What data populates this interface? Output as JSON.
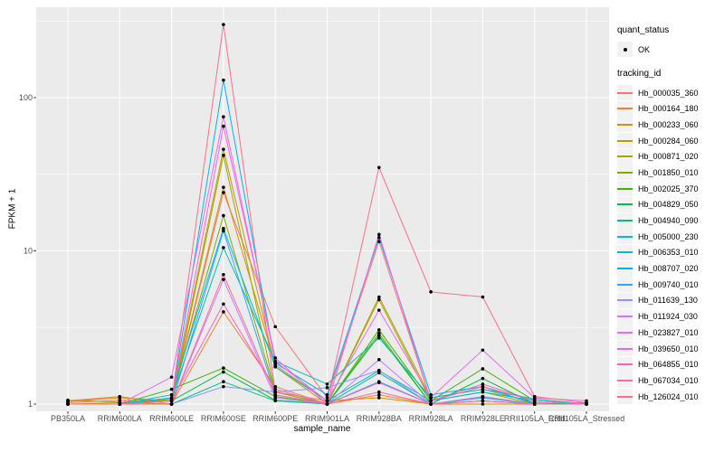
{
  "chart_data": {
    "type": "line",
    "title": "",
    "xlabel": "sample_name",
    "ylabel": "FPKM + 1",
    "y_scale": "log10",
    "y_ticks": [
      1,
      10,
      100
    ],
    "y_minor_ticks": [
      3.162,
      31.62,
      316.2
    ],
    "ylim": [
      0.9,
      390
    ],
    "grid": "on",
    "legend_position": "right",
    "point_marker": "black-dot",
    "categories": [
      "PB350LA",
      "RRIM600LA",
      "RRIM600LE",
      "RRIM600SE",
      "RRIM600PE",
      "RRIM901LA",
      "RRIM928BA",
      "RRIM928LA",
      "RRIM928LE",
      "RRII105LA_Cold",
      "RRII105LA_Stressed"
    ],
    "series": [
      {
        "name": "Hb_000035_360",
        "color": "#F8766D",
        "values": [
          1.02,
          1.06,
          1.05,
          24,
          3.2,
          1.1,
          11.5,
          1.05,
          1.35,
          1.05,
          1.0
        ]
      },
      {
        "name": "Hb_000164_180",
        "color": "#EA8331",
        "values": [
          1.05,
          1.12,
          1.0,
          4.0,
          1.3,
          1.0,
          1.15,
          1.0,
          1.05,
          1.0,
          1.0
        ]
      },
      {
        "name": "Hb_000233_060",
        "color": "#D89000",
        "values": [
          1.04,
          1.1,
          1.05,
          26,
          1.8,
          1.05,
          1.1,
          1.0,
          1.0,
          1.0,
          1.0
        ]
      },
      {
        "name": "Hb_000284_060",
        "color": "#C09B00",
        "values": [
          1.0,
          1.02,
          1.05,
          46,
          1.75,
          1.0,
          5.0,
          1.1,
          1.25,
          1.02,
          1.0
        ]
      },
      {
        "name": "Hb_000871_020",
        "color": "#A3A500",
        "values": [
          1.06,
          1.03,
          1.0,
          42,
          1.2,
          1.0,
          4.8,
          1.05,
          1.2,
          1.0,
          1.0
        ]
      },
      {
        "name": "Hb_001850_010",
        "color": "#7CAE00",
        "values": [
          1.0,
          1.0,
          1.08,
          17,
          1.2,
          1.0,
          2.9,
          1.0,
          1.12,
          1.0,
          1.0
        ]
      },
      {
        "name": "Hb_002025_370",
        "color": "#39B600",
        "values": [
          1.0,
          1.0,
          1.25,
          1.72,
          1.12,
          1.0,
          3.05,
          1.05,
          1.7,
          1.05,
          1.0
        ]
      },
      {
        "name": "Hb_004829_050",
        "color": "#00BB4E",
        "values": [
          1.0,
          1.0,
          1.05,
          1.62,
          1.06,
          1.0,
          2.8,
          1.0,
          1.47,
          1.0,
          1.02
        ]
      },
      {
        "name": "Hb_004940_090",
        "color": "#00C087",
        "values": [
          1.0,
          1.0,
          1.0,
          1.4,
          1.05,
          1.0,
          1.6,
          1.0,
          1.1,
          1.0,
          1.0
        ]
      },
      {
        "name": "Hb_005000_230",
        "color": "#00C0B8",
        "values": [
          1.0,
          1.0,
          1.1,
          10.5,
          1.9,
          1.35,
          2.7,
          1.1,
          1.25,
          1.08,
          1.0
        ]
      },
      {
        "name": "Hb_006353_010",
        "color": "#00BCD8",
        "values": [
          1.0,
          1.0,
          1.15,
          14,
          1.75,
          1.05,
          1.65,
          1.05,
          1.2,
          1.05,
          1.0
        ]
      },
      {
        "name": "Hb_008707_020",
        "color": "#00B0F6",
        "values": [
          1.0,
          1.0,
          1.05,
          130,
          1.85,
          1.15,
          12.2,
          1.15,
          1.3,
          1.0,
          1.0
        ]
      },
      {
        "name": "Hb_009740_010",
        "color": "#35A2FF",
        "values": [
          1.0,
          1.0,
          1.0,
          13.5,
          1.15,
          1.0,
          1.4,
          1.0,
          1.1,
          1.0,
          1.0
        ]
      },
      {
        "name": "Hb_011639_130",
        "color": "#9590FF",
        "values": [
          1.0,
          1.0,
          1.0,
          1.3,
          1.2,
          1.28,
          1.66,
          1.0,
          1.05,
          1.0,
          1.0
        ]
      },
      {
        "name": "Hb_011924_030",
        "color": "#C77CFF",
        "values": [
          1.0,
          1.0,
          1.0,
          6.5,
          1.1,
          1.0,
          1.95,
          1.0,
          1.12,
          1.0,
          1.0
        ]
      },
      {
        "name": "Hb_023827_010",
        "color": "#E76BF3",
        "values": [
          1.0,
          1.0,
          1.5,
          75,
          1.9,
          1.05,
          4.1,
          1.1,
          2.25,
          1.1,
          1.05
        ]
      },
      {
        "name": "Hb_039650_010",
        "color": "#FA62DB",
        "values": [
          1.0,
          1.0,
          1.05,
          65,
          2.0,
          1.0,
          12.8,
          1.05,
          1.3,
          1.05,
          1.0
        ]
      },
      {
        "name": "Hb_064855_010",
        "color": "#FF62BC",
        "values": [
          1.0,
          1.0,
          1.05,
          4.5,
          1.25,
          1.0,
          1.38,
          1.0,
          1.05,
          1.0,
          1.0
        ]
      },
      {
        "name": "Hb_067034_010",
        "color": "#FF6A98",
        "values": [
          1.0,
          1.0,
          1.0,
          7.0,
          1.15,
          1.0,
          1.2,
          1.0,
          1.05,
          1.0,
          1.0
        ]
      },
      {
        "name": "Hb_126024_010",
        "color": "#FD6F88",
        "values": [
          1.0,
          1.0,
          1.05,
          300,
          1.2,
          1.05,
          35,
          5.4,
          5.0,
          1.12,
          1.02
        ]
      }
    ]
  },
  "legend": {
    "quant_status": {
      "title": "quant_status",
      "items": [
        "OK"
      ]
    },
    "tracking_id": {
      "title": "tracking_id"
    }
  },
  "colors": {
    "panel_bg": "#EBEBEB",
    "grid": "#FFFFFF",
    "legend_key_bg": "#F2F2F2",
    "tick_label": "#4D4D4D",
    "point": "#000000"
  }
}
